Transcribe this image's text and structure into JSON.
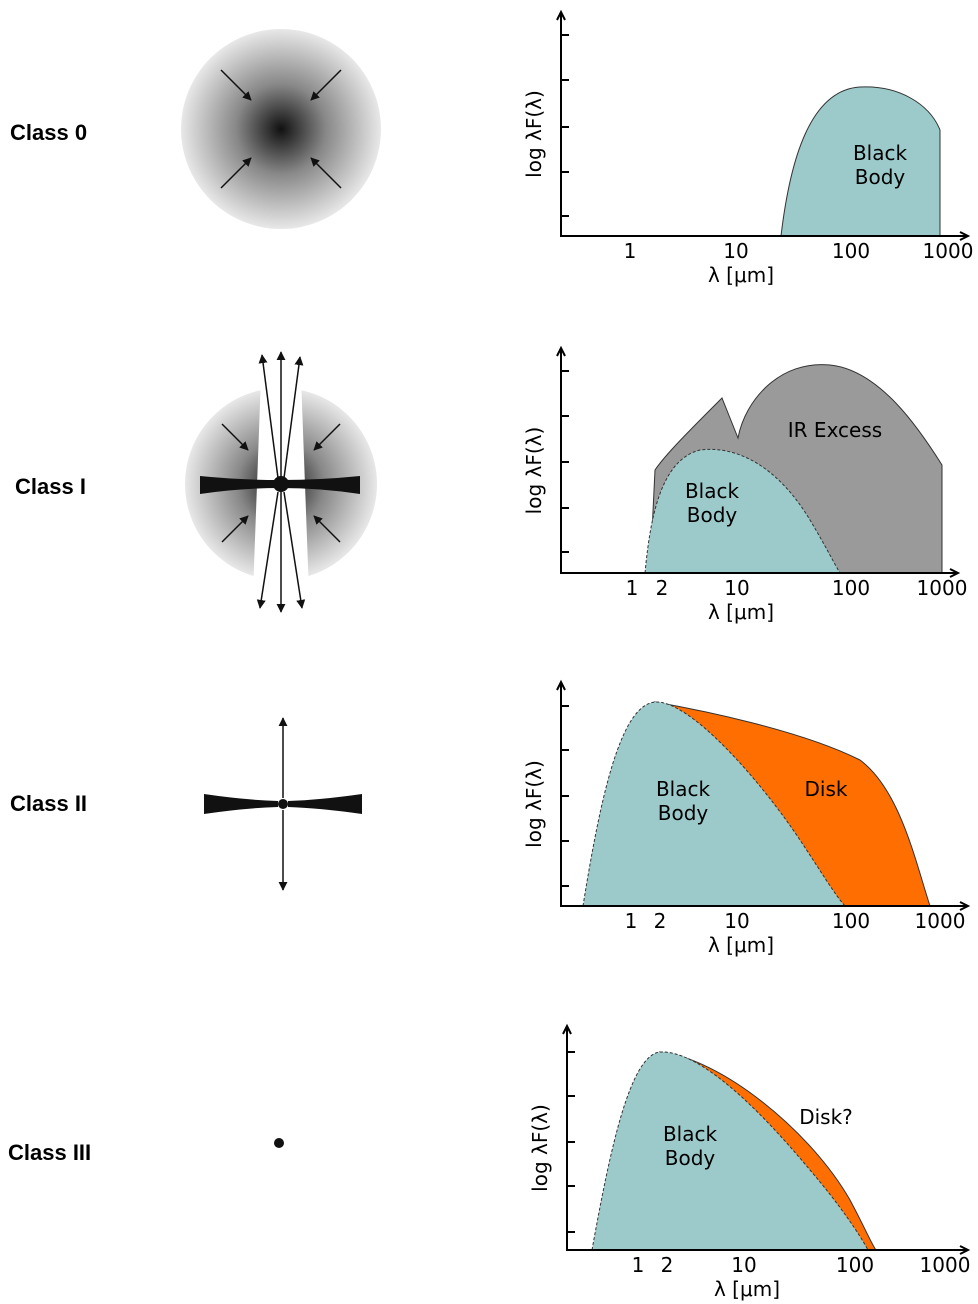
{
  "rows": [
    {
      "class": "Class 0",
      "plot": {
        "y_label": "log λF(λ)",
        "x_label": "λ [μm]",
        "x_ticks": [
          "1",
          "10",
          "100",
          "1000"
        ],
        "regions": [
          {
            "lines": [
              "Black",
              "Body"
            ]
          }
        ]
      }
    },
    {
      "class": "Class I",
      "plot": {
        "y_label": "log λF(λ)",
        "x_label": "λ [μm]",
        "x_ticks": [
          "1",
          "2",
          "10",
          "100",
          "1000"
        ],
        "regions": [
          {
            "lines": [
              "IR Excess"
            ]
          },
          {
            "lines": [
              "Black",
              "Body"
            ]
          }
        ]
      }
    },
    {
      "class": "Class II",
      "plot": {
        "y_label": "log λF(λ)",
        "x_label": "λ [μm]",
        "x_ticks": [
          "1",
          "2",
          "10",
          "100",
          "1000"
        ],
        "regions": [
          {
            "lines": [
              "Black",
              "Body"
            ]
          },
          {
            "lines": [
              "Disk"
            ]
          }
        ]
      }
    },
    {
      "class": "Class III",
      "plot": {
        "y_label": "log λF(λ)",
        "x_label": "λ [μm]",
        "x_ticks": [
          "1",
          "2",
          "10",
          "100",
          "1000"
        ],
        "regions": [
          {
            "lines": [
              "Black",
              "Body"
            ]
          },
          {
            "lines": [
              "Disk?"
            ]
          }
        ]
      }
    }
  ]
}
